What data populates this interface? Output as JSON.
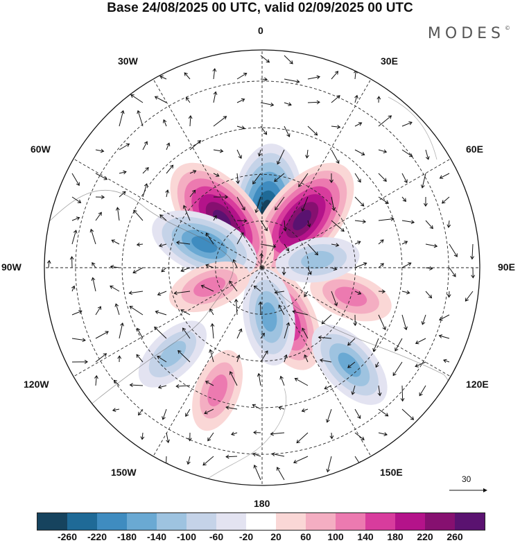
{
  "title": "Base 24/08/2025 00 UTC, valid 02/09/2025 00 UTC",
  "brand": "MODES",
  "brand_mark": "©",
  "lon_labels": {
    "lon_0": "0",
    "lon_30e": "30E",
    "lon_60e": "60E",
    "lon_90e": "90E",
    "lon_120e": "120E",
    "lon_150e": "150E",
    "lon_180": "180",
    "lon_150w": "150W",
    "lon_120w": "120W",
    "lon_90w": "90W",
    "lon_60w": "60W",
    "lon_30w": "30W"
  },
  "reference_vector": "30",
  "colorbar": {
    "colors": [
      "#16435e",
      "#1f6a97",
      "#3f8cc0",
      "#6aa9d3",
      "#9ec3e0",
      "#c5d3e8",
      "#e3e3f1",
      "#ffffff",
      "#fad7d6",
      "#f4aec2",
      "#ec7ab0",
      "#d83c9d",
      "#b4138a",
      "#861070",
      "#5a1270"
    ],
    "ticks": [
      "-260",
      "-220",
      "-180",
      "-140",
      "-100",
      "-60",
      "-20",
      "20",
      "60",
      "100",
      "140",
      "180",
      "220",
      "260"
    ]
  },
  "anomaly_features": [
    {
      "sign": "negative",
      "level": 6,
      "lon": 5,
      "lat": 72
    },
    {
      "sign": "positive",
      "level": 6,
      "lon": 40,
      "lat": 70
    },
    {
      "sign": "positive",
      "level": 6,
      "lon": -40,
      "lat": 70
    },
    {
      "sign": "negative",
      "level": 4,
      "lon": -68,
      "lat": 70
    },
    {
      "sign": "positive",
      "level": 4,
      "lon": 155,
      "lat": 72
    },
    {
      "sign": "negative",
      "level": 3,
      "lon": 172,
      "lat": 74
    },
    {
      "sign": "positive",
      "level": 2,
      "lon": 108,
      "lat": 60
    },
    {
      "sign": "negative",
      "level": 3,
      "lon": 138,
      "lat": 48
    },
    {
      "sign": "positive",
      "level": 2,
      "lon": -110,
      "lat": 72
    },
    {
      "sign": "negative",
      "level": 2,
      "lon": -134,
      "lat": 50
    },
    {
      "sign": "positive",
      "level": 2,
      "lon": -160,
      "lat": 48
    },
    {
      "sign": "negative",
      "level": 2,
      "lon": 82,
      "lat": 72
    }
  ]
}
